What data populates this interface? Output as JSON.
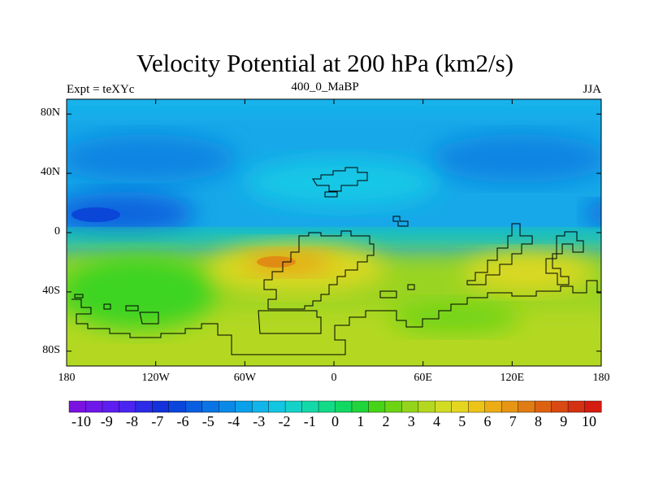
{
  "title": "Velocity Potential at 200 hPa (km2/s)",
  "subtitle": {
    "left": "Expt = teXYc",
    "center": "400_0_MaBP",
    "right": "JJA"
  },
  "axes": {
    "y_ticks": [
      {
        "value": 80,
        "label": "80N"
      },
      {
        "value": 40,
        "label": "40N"
      },
      {
        "value": 0,
        "label": "0"
      },
      {
        "value": -40,
        "label": "40S"
      },
      {
        "value": -80,
        "label": "80S"
      }
    ],
    "x_ticks": [
      {
        "value": -180,
        "label": "180"
      },
      {
        "value": -120,
        "label": "120W"
      },
      {
        "value": -60,
        "label": "60W"
      },
      {
        "value": 0,
        "label": "0"
      },
      {
        "value": 60,
        "label": "60E"
      },
      {
        "value": 120,
        "label": "120E"
      },
      {
        "value": 180,
        "label": "180"
      }
    ],
    "lon_range": [
      -180,
      180
    ],
    "lat_range": [
      -90,
      90
    ]
  },
  "colorbar": {
    "labels": [
      "-10",
      "-9",
      "-8",
      "-7",
      "-6",
      "-5",
      "-4",
      "-3",
      "-2",
      "-1",
      "0",
      "1",
      "2",
      "3",
      "4",
      "5",
      "6",
      "7",
      "8",
      "9",
      "10"
    ],
    "colors": [
      "#7a12e0",
      "#6e18ea",
      "#5e1ef0",
      "#4a25f2",
      "#2b2be8",
      "#1432dc",
      "#0a46dc",
      "#0a5ee0",
      "#0a74e4",
      "#0a8ae8",
      "#0aa0ea",
      "#12b4ea",
      "#12c6e2",
      "#14d2c8",
      "#14d8a8",
      "#12da86",
      "#12d862",
      "#20d43c",
      "#46d418",
      "#6cd414",
      "#94d41c",
      "#b4d820",
      "#d2dc22",
      "#e4d620",
      "#ecc418",
      "#ecac16",
      "#e69614",
      "#e07c14",
      "#dc6212",
      "#d84a12",
      "#d43012",
      "#d41c10"
    ],
    "min": -10,
    "max": 10
  }
}
